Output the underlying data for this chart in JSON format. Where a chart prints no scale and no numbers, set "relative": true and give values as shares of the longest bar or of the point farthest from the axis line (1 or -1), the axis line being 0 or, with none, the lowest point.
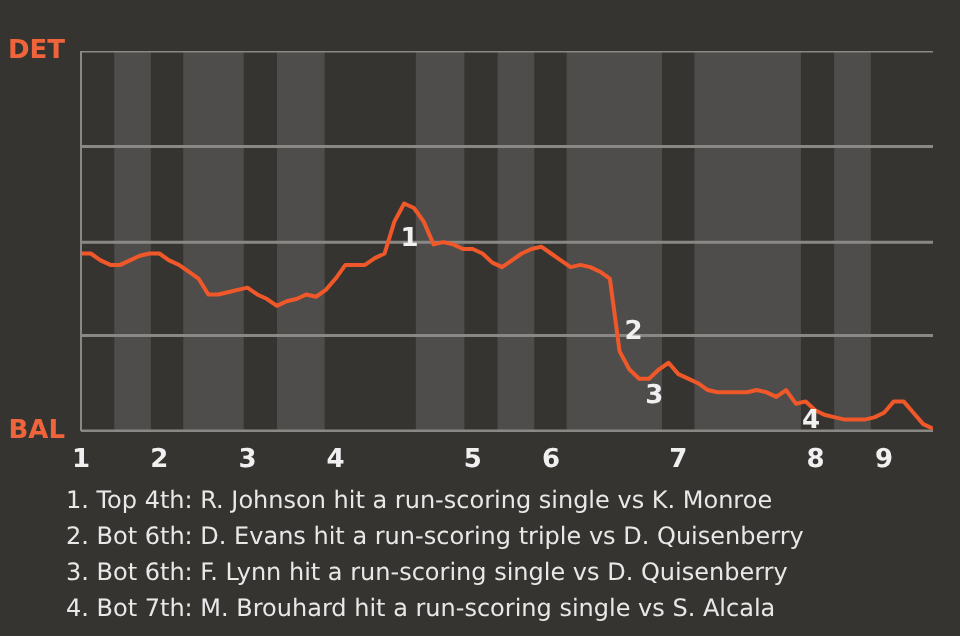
{
  "chart_data": {
    "type": "line",
    "relative": true,
    "categories": [
      "1",
      null,
      null,
      null,
      null,
      null,
      null,
      null,
      "2",
      null,
      null,
      null,
      null,
      null,
      null,
      null,
      null,
      "3",
      null,
      null,
      null,
      null,
      null,
      null,
      null,
      null,
      "4",
      null,
      null,
      null,
      null,
      null,
      null,
      null,
      null,
      null,
      null,
      null,
      null,
      null,
      "5",
      null,
      null,
      null,
      null,
      null,
      null,
      null,
      "6",
      null,
      null,
      null,
      null,
      null,
      null,
      null,
      null,
      null,
      null,
      null,
      null,
      "7",
      null,
      null,
      null,
      null,
      null,
      null,
      null,
      null,
      null,
      null,
      null,
      null,
      null,
      "8",
      null,
      null,
      null,
      null,
      null,
      null,
      "9",
      null,
      null,
      null,
      null,
      null
    ],
    "grid": false,
    "marker": "none",
    "line_style": "solid",
    "series": [
      {
        "color": "#f0582a",
        "values": [
          0.78,
          0.78,
          0.75,
          0.73,
          0.73,
          0.75,
          0.77,
          0.78,
          0.78,
          0.75,
          0.73,
          0.7,
          0.67,
          0.6,
          0.6,
          0.61,
          0.62,
          0.63,
          0.6,
          0.58,
          0.55,
          0.57,
          0.58,
          0.6,
          0.59,
          0.62,
          0.67,
          0.73,
          0.73,
          0.73,
          0.76,
          0.78,
          0.92,
          1,
          0.98,
          0.92,
          0.82,
          0.83,
          0.82,
          0.8,
          0.8,
          0.78,
          0.74,
          0.72,
          0.75,
          0.78,
          0.8,
          0.81,
          0.78,
          0.75,
          0.72,
          0.73,
          0.72,
          0.7,
          0.67,
          0.35,
          0.27,
          0.23,
          0.23,
          0.27,
          0.3,
          0.25,
          0.23,
          0.21,
          0.18,
          0.17,
          0.17,
          0.17,
          0.17,
          0.18,
          0.17,
          0.15,
          0.18,
          0.12,
          0.13,
          0.09,
          0.07,
          0.06,
          0.05,
          0.05,
          0.05,
          0.06,
          0.08,
          0.13,
          0.13,
          0.08,
          0.03,
          0.01
        ]
      }
    ],
    "ref_lines": [
      {
        "axis": "y",
        "value": 0,
        "label": "BAL",
        "color": "#8a8884"
      },
      {
        "axis": "y",
        "value": 0.42,
        "label": null,
        "color": "#8a8884"
      },
      {
        "axis": "y",
        "value": 0.83,
        "label": null,
        "color": "#8a8884"
      },
      {
        "axis": "y",
        "value": 1.25,
        "label": null,
        "color": "#8a8884"
      },
      {
        "axis": "y",
        "value": 1.67,
        "label": "DET",
        "color": "#8a8884"
      }
    ],
    "annotations": [
      {
        "text": "1",
        "y": 0.92
      },
      {
        "text": "2",
        "y": 0.45
      },
      {
        "text": "3",
        "y": 0.23
      },
      {
        "text": "4",
        "y": 0.12
      },
      "1. Top 4th: R. Johnson hit a run-scoring single vs K. Monroe",
      "2. Bot 6th: D. Evans hit a run-scoring triple vs D. Quisenberry",
      "3. Bot 6th: F. Lynn hit a run-scoring single vs D. Quisenberry",
      "4. Bot 7th: M. Brouhard hit a run-scoring single vs S. Alcala"
    ]
  }
}
